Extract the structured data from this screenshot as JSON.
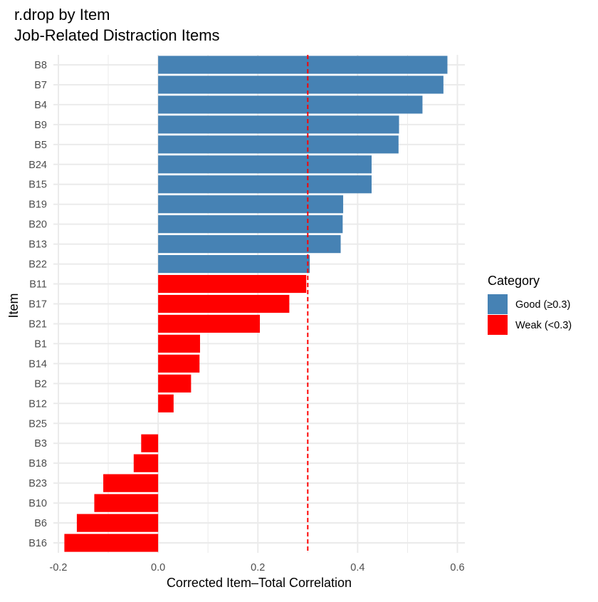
{
  "chart_data": {
    "type": "bar",
    "orientation": "horizontal",
    "title": "r.drop by Item",
    "subtitle": "Job-Related Distraction Items",
    "xlabel": "Corrected Item–Total Correlation",
    "ylabel": "Item",
    "xlim": [
      -0.21,
      0.615
    ],
    "x_ticks": [
      -0.2,
      0.0,
      0.2,
      0.4,
      0.6
    ],
    "x_tick_labels": [
      "-0.2",
      "0.0",
      "0.2",
      "0.4",
      "0.6"
    ],
    "grid": true,
    "reference_line": {
      "x": 0.3,
      "style": "dashed",
      "color": "#ff0000"
    },
    "categories": [
      "B8",
      "B7",
      "B4",
      "B9",
      "B5",
      "B24",
      "B15",
      "B19",
      "B20",
      "B13",
      "B22",
      "B11",
      "B17",
      "B21",
      "B1",
      "B14",
      "B2",
      "B12",
      "B25",
      "B3",
      "B18",
      "B23",
      "B10",
      "B6",
      "B16"
    ],
    "values": [
      0.58,
      0.572,
      0.53,
      0.483,
      0.482,
      0.428,
      0.428,
      0.371,
      0.37,
      0.366,
      0.304,
      0.297,
      0.263,
      0.204,
      0.084,
      0.083,
      0.066,
      0.031,
      0.0,
      -0.034,
      -0.049,
      -0.11,
      -0.128,
      -0.163,
      -0.188
    ],
    "groups": [
      "Good",
      "Good",
      "Good",
      "Good",
      "Good",
      "Good",
      "Good",
      "Good",
      "Good",
      "Good",
      "Good",
      "Weak",
      "Weak",
      "Weak",
      "Weak",
      "Weak",
      "Weak",
      "Weak",
      "Weak",
      "Weak",
      "Weak",
      "Weak",
      "Weak",
      "Weak",
      "Weak"
    ],
    "legend": {
      "title": "Category",
      "position": "right",
      "entries": [
        {
          "key": "Good",
          "label": "Good (≥0.3)",
          "color": "#4682b4"
        },
        {
          "key": "Weak",
          "label": "Weak (<0.3)",
          "color": "#ff0000"
        }
      ]
    }
  }
}
